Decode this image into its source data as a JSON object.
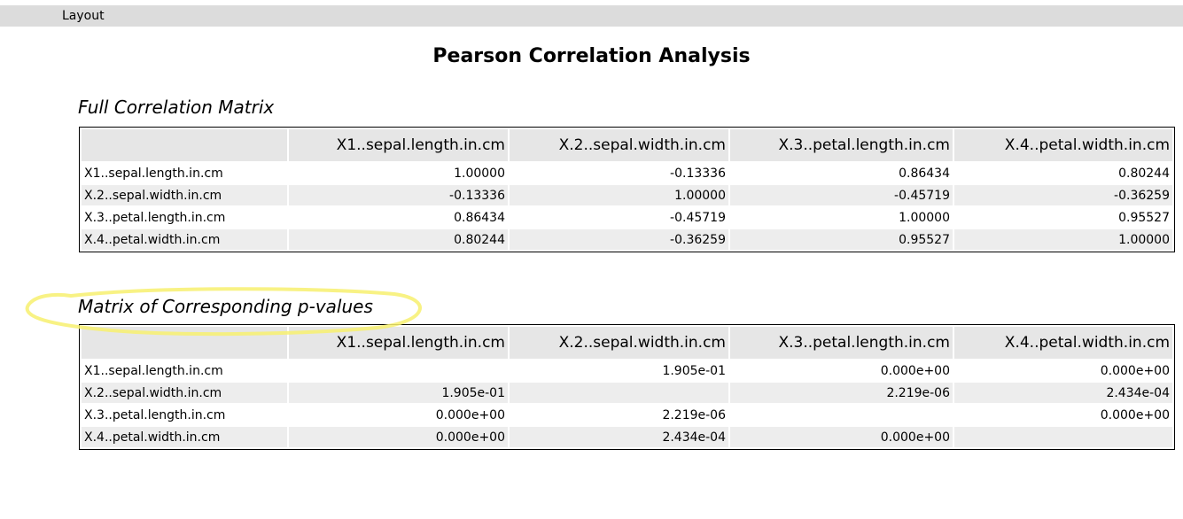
{
  "topbar": {
    "tab_label": "Layout"
  },
  "page_title": "Pearson Correlation Analysis",
  "correlation": {
    "title": "Full Correlation Matrix",
    "columns": [
      "X1..sepal.length.in.cm",
      "X.2..sepal.width.in.cm",
      "X.3..petal.length.in.cm",
      "X.4..petal.width.in.cm"
    ],
    "rows": [
      {
        "label": "X1..sepal.length.in.cm",
        "cells": [
          "1.00000",
          "-0.13336",
          "0.86434",
          "0.80244"
        ]
      },
      {
        "label": "X.2..sepal.width.in.cm",
        "cells": [
          "-0.13336",
          "1.00000",
          "-0.45719",
          "-0.36259"
        ]
      },
      {
        "label": "X.3..petal.length.in.cm",
        "cells": [
          "0.86434",
          "-0.45719",
          "1.00000",
          "0.95527"
        ]
      },
      {
        "label": "X.4..petal.width.in.cm",
        "cells": [
          "0.80244",
          "-0.36259",
          "0.95527",
          "1.00000"
        ]
      }
    ]
  },
  "pvalues": {
    "title": "Matrix of Corresponding p-values",
    "columns": [
      "X1..sepal.length.in.cm",
      "X.2..sepal.width.in.cm",
      "X.3..petal.length.in.cm",
      "X.4..petal.width.in.cm"
    ],
    "rows": [
      {
        "label": "X1..sepal.length.in.cm",
        "cells": [
          "",
          "1.905e-01",
          "0.000e+00",
          "0.000e+00"
        ]
      },
      {
        "label": "X.2..sepal.width.in.cm",
        "cells": [
          "1.905e-01",
          "",
          "2.219e-06",
          "2.434e-04"
        ]
      },
      {
        "label": "X.3..petal.length.in.cm",
        "cells": [
          "0.000e+00",
          "2.219e-06",
          "",
          "0.000e+00"
        ]
      },
      {
        "label": "X.4..petal.width.in.cm",
        "cells": [
          "0.000e+00",
          "2.434e-04",
          "0.000e+00",
          ""
        ]
      }
    ]
  },
  "annotation": {
    "highlight_color": "#f7f06e"
  }
}
